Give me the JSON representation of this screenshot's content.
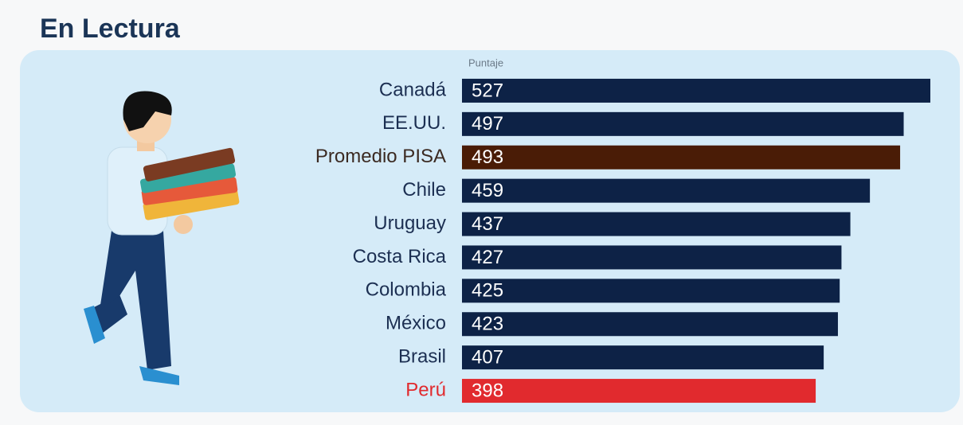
{
  "chart_data": {
    "type": "bar",
    "orientation": "horizontal",
    "title": "En Lectura",
    "xlabel": "Puntaje",
    "categories": [
      "Canadá",
      "EE.UU.",
      "Promedio PISA",
      "Chile",
      "Uruguay",
      "Costa Rica",
      "Colombia",
      "México",
      "Brasil",
      "Perú"
    ],
    "values": [
      527,
      497,
      493,
      459,
      437,
      427,
      425,
      423,
      407,
      398
    ],
    "colors": [
      "#0d2246",
      "#0d2246",
      "#4a1c06",
      "#0d2246",
      "#0d2246",
      "#0d2246",
      "#0d2246",
      "#0d2246",
      "#0d2246",
      "#e12a2e"
    ],
    "label_colors": [
      "#1c2f52",
      "#1c2f52",
      "#3b2a22",
      "#1c2f52",
      "#1c2f52",
      "#1c2f52",
      "#1c2f52",
      "#1c2f52",
      "#1c2f52",
      "#e12a2e"
    ],
    "xlim": [
      0,
      527
    ]
  }
}
